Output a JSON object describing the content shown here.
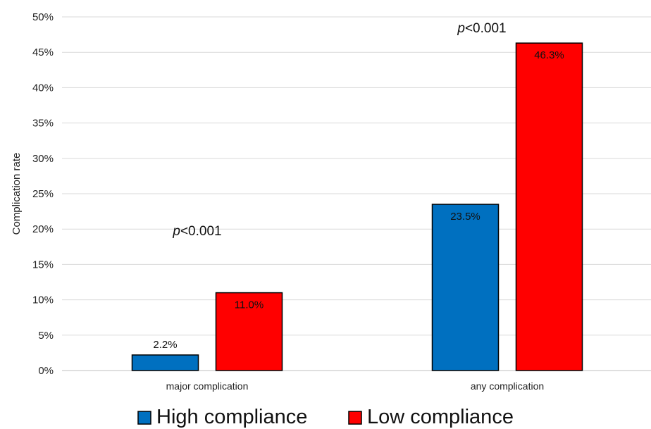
{
  "chart_data": {
    "type": "bar",
    "categories": [
      "major complication",
      "any complication"
    ],
    "series": [
      {
        "name": "High compliance",
        "color": "#0070c0",
        "values": [
          2.2,
          23.5
        ],
        "labels": [
          "2.2%",
          "23.5%"
        ]
      },
      {
        "name": "Low compliance",
        "color": "#ff0000",
        "values": [
          11.0,
          46.3
        ],
        "labels": [
          "11.0%",
          "46.3%"
        ]
      }
    ],
    "ylabel": "Complication rate",
    "ylim": [
      0,
      50
    ],
    "yticks": [
      "0%",
      "5%",
      "10%",
      "15%",
      "20%",
      "25%",
      "30%",
      "35%",
      "40%",
      "45%",
      "50%"
    ],
    "grid": true,
    "legend_position": "bottom",
    "annotations": [
      {
        "category": "major complication",
        "italic": "p",
        "rest": "<0.001"
      },
      {
        "category": "any complication",
        "italic": "p",
        "rest": "<0.001"
      }
    ]
  }
}
